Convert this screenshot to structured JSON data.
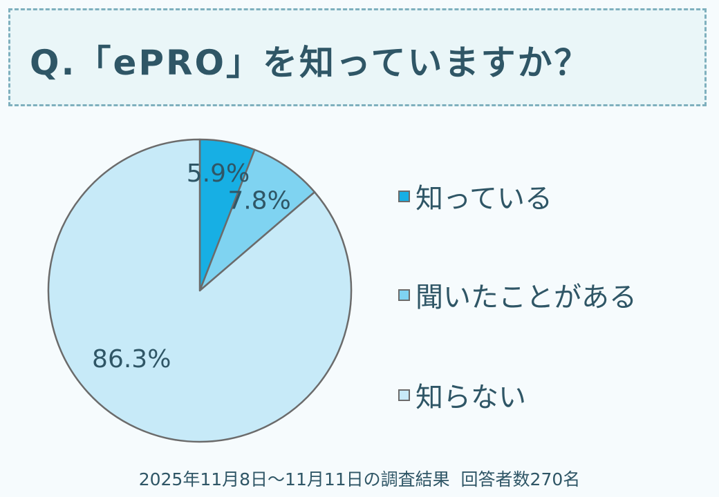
{
  "title": "Q.「ePRO」を知っていますか？",
  "chart_data": {
    "type": "pie",
    "categories": [
      "知っている",
      "聞いたことがある",
      "知らない"
    ],
    "values": [
      5.9,
      7.8,
      86.3
    ],
    "data_labels": [
      "5.9%",
      "7.8%",
      "86.3%"
    ],
    "colors": [
      "#17afe4",
      "#7fd3f1",
      "#c7eaf8"
    ],
    "legend_placement": "right"
  },
  "legend": [
    {
      "label": "知っている",
      "color": "#17afe4"
    },
    {
      "label": "聞いたことがある",
      "color": "#7fd3f1"
    },
    {
      "label": "知らない",
      "color": "#c7eaf8"
    }
  ],
  "footer": "2025年11月8日～11月11日の調査結果  回答者数270名"
}
